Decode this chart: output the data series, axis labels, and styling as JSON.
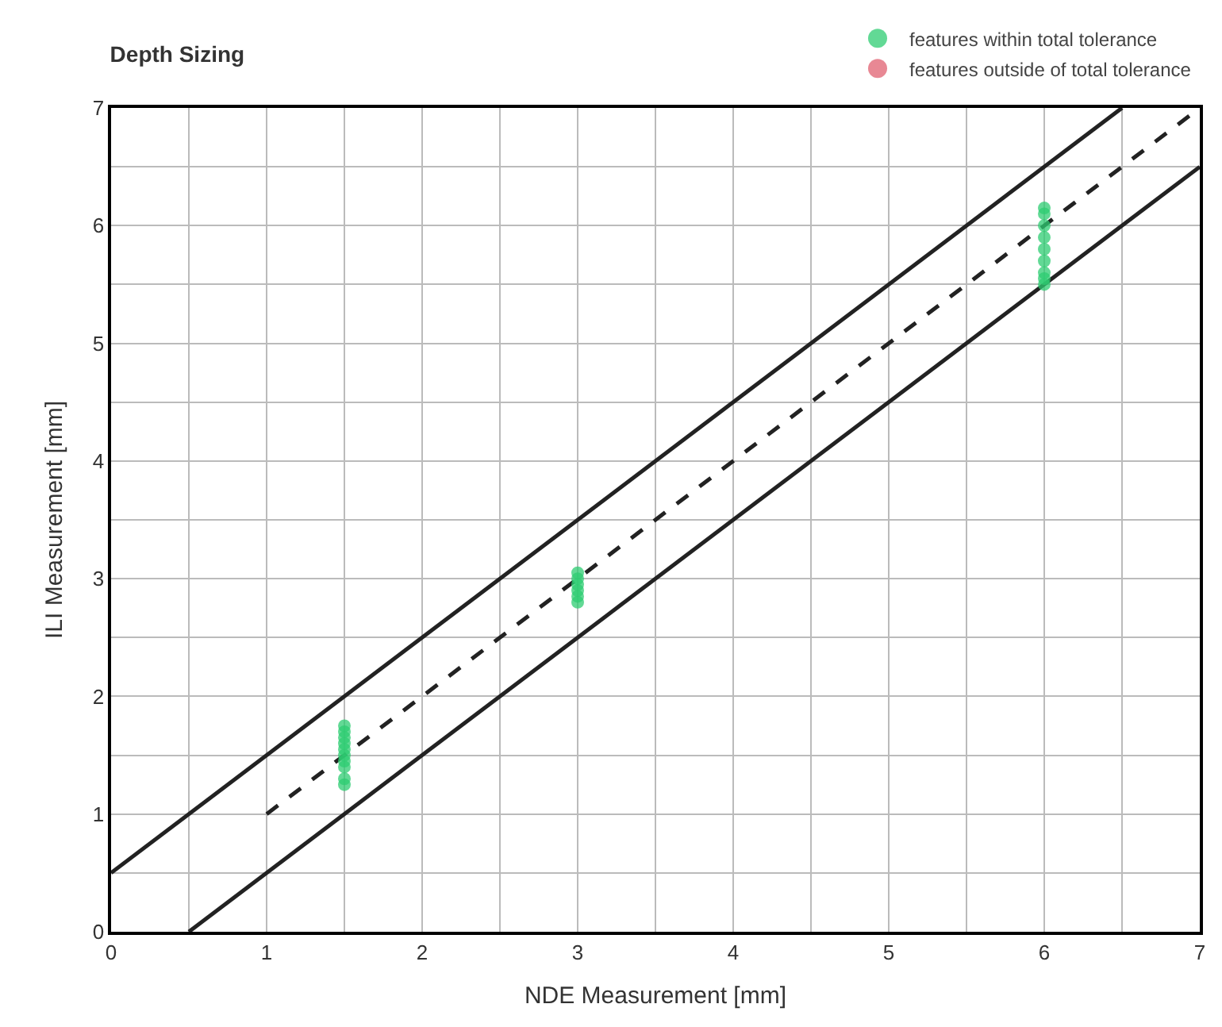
{
  "chart_data": {
    "type": "scatter",
    "title": "Depth Sizing",
    "xlabel": "NDE Measurement [mm]",
    "ylabel": "ILI Measurement [mm]",
    "xlim": [
      0,
      7
    ],
    "ylim": [
      0,
      7
    ],
    "xticks": [
      0,
      {
        "value": 0.5,
        "label": null
      },
      1,
      {
        "value": 1.5,
        "label": null
      },
      2,
      {
        "value": 2.5,
        "label": null
      },
      3,
      {
        "value": 3.5,
        "label": null
      },
      4,
      {
        "value": 4.5,
        "label": null
      },
      5,
      {
        "value": 5.5,
        "label": null
      },
      6,
      {
        "value": 6.5,
        "label": null
      },
      7
    ],
    "yticks": [
      0,
      {
        "value": 0.5,
        "label": null
      },
      1,
      {
        "value": 1.5,
        "label": null
      },
      2,
      {
        "value": 2.5,
        "label": null
      },
      3,
      {
        "value": 3.5,
        "label": null
      },
      4,
      {
        "value": 4.5,
        "label": null
      },
      5,
      {
        "value": 5.5,
        "label": null
      },
      6,
      {
        "value": 6.5,
        "label": null
      },
      7
    ],
    "grid": true,
    "legend": "top right",
    "marker": "circle",
    "series": [
      {
        "type": "line",
        "marker": "none",
        "color": "#222222",
        "line_style": "solid",
        "x": [
          0,
          6.5
        ],
        "values": [
          0.5,
          7
        ]
      },
      {
        "type": "line",
        "marker": "none",
        "color": "#222222",
        "line_style": "solid",
        "x": [
          0.5,
          7
        ],
        "values": [
          0,
          6.5
        ]
      },
      {
        "type": "line",
        "marker": "none",
        "color": "#222222",
        "line_style": "dashed",
        "x": [
          1,
          7
        ],
        "values": [
          1,
          7
        ]
      },
      {
        "name": "features within total tolerance",
        "color": "#2ecc71",
        "x": [
          1.5,
          1.5,
          1.5,
          1.5,
          1.5,
          1.5,
          1.5,
          1.5,
          1.5,
          1.5,
          3,
          3,
          3,
          3,
          3,
          3,
          6,
          6,
          6,
          6,
          6,
          6,
          6,
          6,
          6
        ],
        "values": [
          1.25,
          1.3,
          1.4,
          1.45,
          1.5,
          1.55,
          1.6,
          1.65,
          1.7,
          1.75,
          2.8,
          2.85,
          2.9,
          2.95,
          3.0,
          3.05,
          5.5,
          5.55,
          5.6,
          5.7,
          5.8,
          5.9,
          6.0,
          6.1,
          6.15
        ]
      },
      {
        "name": "features outside of total tolerance",
        "color": "#e06070"
      }
    ]
  }
}
